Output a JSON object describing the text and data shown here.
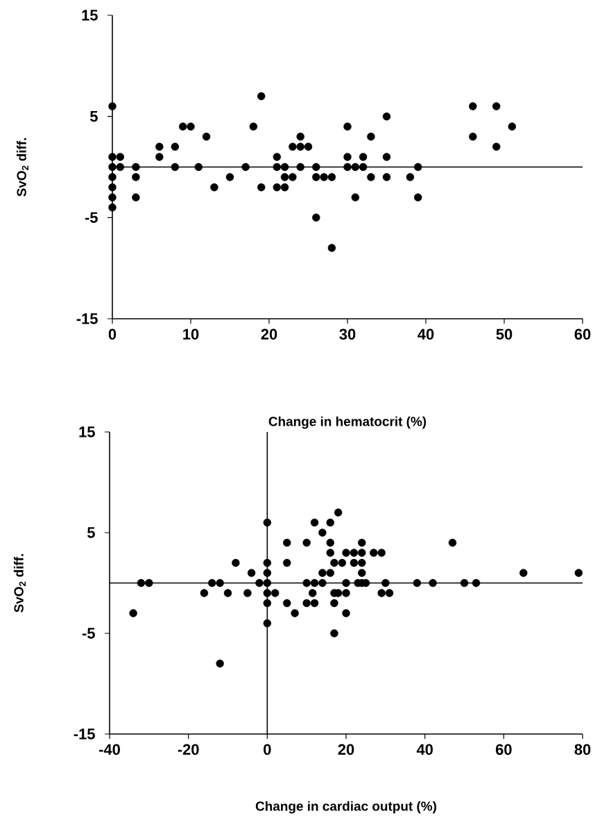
{
  "chart_data": [
    {
      "type": "scatter",
      "xlabel": "Change in hematocrit (%)",
      "ylabel": "SvO$_{2}$ diff.",
      "xlim": [
        0,
        60
      ],
      "ylim": [
        -15,
        15
      ],
      "xticks": [
        0,
        10,
        20,
        30,
        40,
        50,
        60
      ],
      "yticks": [
        -15,
        -5,
        5,
        15
      ],
      "marker": "circle",
      "grid": false,
      "ref_lines": [
        {
          "axis": "y",
          "value": 0
        }
      ],
      "series": [
        {
          "color": "#000000",
          "x": [
            0,
            0,
            0,
            0,
            0,
            0,
            0,
            1,
            1,
            3,
            3,
            3,
            6,
            6,
            8,
            8,
            9,
            10,
            11,
            12,
            13,
            15,
            17,
            18,
            19,
            19,
            21,
            21,
            21,
            22,
            22,
            22,
            23,
            23,
            24,
            24,
            24,
            25,
            26,
            26,
            26,
            27,
            28,
            28,
            30,
            30,
            30,
            31,
            31,
            32,
            32,
            33,
            33,
            35,
            35,
            35,
            38,
            39,
            39,
            46,
            46,
            49,
            49,
            51
          ],
          "values": [
            6,
            1,
            0,
            -1,
            -2,
            -3,
            -4,
            1,
            0,
            0,
            -1,
            -3,
            2,
            1,
            2,
            0,
            4,
            4,
            0,
            3,
            -2,
            -1,
            0,
            4,
            7,
            -2,
            1,
            0,
            -2,
            0,
            -1,
            -2,
            2,
            -1,
            3,
            2,
            0,
            2,
            0,
            -1,
            -5,
            -1,
            -1,
            -8,
            4,
            1,
            0,
            0,
            -3,
            1,
            0,
            3,
            -1,
            5,
            1,
            -1,
            -1,
            0,
            -3,
            6,
            3,
            6,
            2,
            4
          ]
        }
      ]
    },
    {
      "type": "scatter",
      "xlabel": "Change in cardiac output (%)",
      "ylabel": "SvO$_{2}$ diff.",
      "xlim": [
        -40,
        80
      ],
      "ylim": [
        -15,
        15
      ],
      "xticks": [
        -40,
        -20,
        0,
        20,
        40,
        60,
        80
      ],
      "yticks": [
        -15,
        -5,
        5,
        15
      ],
      "marker": "circle",
      "grid": false,
      "ref_lines": [
        {
          "axis": "y",
          "value": 0
        },
        {
          "axis": "x",
          "value": 0
        }
      ],
      "series": [
        {
          "color": "#000000",
          "x": [
            -34,
            -32,
            -30,
            -16,
            -14,
            -12,
            -12,
            -10,
            -8,
            -5,
            -4,
            -2,
            0,
            0,
            0,
            0,
            0,
            0,
            0,
            2,
            5,
            5,
            5,
            7,
            10,
            10,
            10,
            11.5,
            12,
            12,
            12,
            14,
            14,
            14,
            16,
            16,
            16,
            16,
            18,
            17,
            19,
            17,
            18,
            17,
            17,
            20,
            20,
            20,
            20,
            22,
            24,
            27,
            29,
            22,
            24,
            24,
            24,
            23,
            24,
            25,
            30,
            38,
            42,
            50,
            53,
            29,
            31,
            47,
            65,
            79
          ],
          "values": [
            -3,
            0,
            0,
            -1,
            0,
            0,
            -8,
            -1,
            2,
            -1,
            1,
            0,
            6,
            2,
            1,
            0,
            -1,
            -2,
            -4,
            -1,
            4,
            2,
            -2,
            -3,
            0,
            4,
            -2,
            -1,
            0,
            6,
            -2,
            5,
            1,
            0,
            6,
            3,
            4,
            1,
            7,
            2,
            2,
            -1,
            -1,
            -2,
            -5,
            3,
            0,
            -1,
            -3,
            3,
            3,
            3,
            3,
            2,
            2,
            4,
            1,
            0,
            0,
            0,
            0,
            0,
            0,
            0,
            0,
            -1,
            -1,
            4,
            1,
            1
          ]
        }
      ]
    }
  ]
}
